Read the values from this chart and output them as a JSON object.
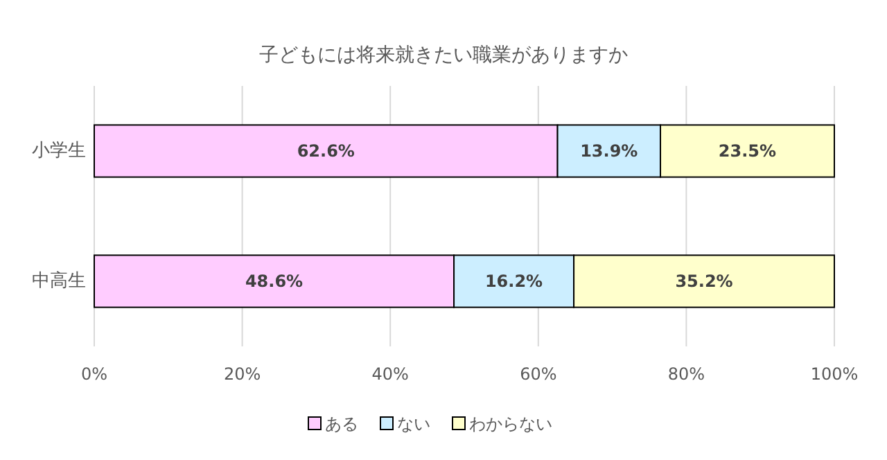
{
  "chart_data": {
    "type": "bar",
    "orientation": "horizontal",
    "stacked": true,
    "title": "子どもには将来就きたい職業がありますか",
    "categories": [
      "小学生",
      "中高生"
    ],
    "series": [
      {
        "name": "ある",
        "color": "#ffccff",
        "values": [
          62.6,
          48.6
        ],
        "value_labels": [
          "62.6%",
          "48.6%"
        ]
      },
      {
        "name": "ない",
        "color": "#cceeff",
        "values": [
          13.9,
          16.2
        ],
        "value_labels": [
          "13.9%",
          "16.2%"
        ]
      },
      {
        "name": "わからない",
        "color": "#ffffcc",
        "values": [
          23.5,
          35.2
        ],
        "value_labels": [
          "23.5%",
          "35.2%"
        ]
      }
    ],
    "xlim": [
      0,
      100
    ],
    "xticks": [
      {
        "value": 0,
        "label": "0%"
      },
      {
        "value": 20,
        "label": "20%"
      },
      {
        "value": 40,
        "label": "40%"
      },
      {
        "value": 60,
        "label": "60%"
      },
      {
        "value": 80,
        "label": "80%"
      },
      {
        "value": 100,
        "label": "100%"
      }
    ],
    "grid": "x",
    "legend": "bottom"
  }
}
